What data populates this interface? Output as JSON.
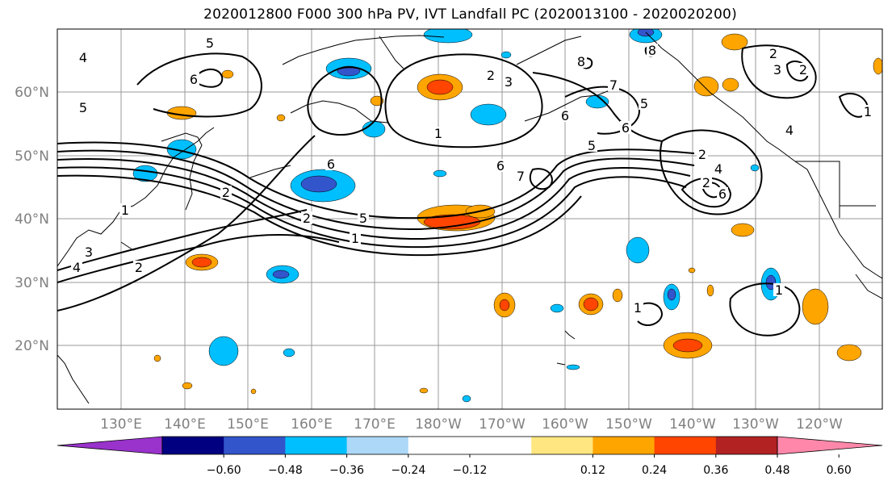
{
  "title": "2020012800 F000 300 hPa PV, IVT Landfall PC (2020013100 - 2020020200)",
  "lat_labels": [
    "60°N",
    "50°N",
    "40°N",
    "30°N",
    "20°N"
  ],
  "lon_labels": [
    "130°E",
    "140°E",
    "150°E",
    "160°E",
    "170°E",
    "180°W",
    "170°W",
    "160°W",
    "150°W",
    "140°W",
    "130°W",
    "120°W"
  ],
  "colorbar": {
    "colors": [
      "#9933cc",
      "#000080",
      "#3355cc",
      "#00bfff",
      "#add8f7",
      "#ffffff",
      "#ffffff",
      "#ffe680",
      "#ffa500",
      "#ff4500",
      "#b22222",
      "#ff88aa"
    ],
    "tick_labels": [
      "−0.60",
      "−0.48",
      "−0.36",
      "−0.24",
      "−0.12",
      "0.12",
      "0.24",
      "0.36",
      "0.48",
      "0.60"
    ]
  },
  "contour_labels": [
    "4",
    "5",
    "5",
    "5",
    "1",
    "3",
    "2",
    "4",
    "6",
    "6",
    "2",
    "5",
    "1",
    "1",
    "3",
    "2",
    "7",
    "6",
    "7",
    "5",
    "2",
    "4",
    "2",
    "6",
    "8",
    "8",
    "2",
    "3",
    "2",
    "4",
    "1",
    "6",
    "1",
    "6",
    "2",
    "1"
  ]
}
